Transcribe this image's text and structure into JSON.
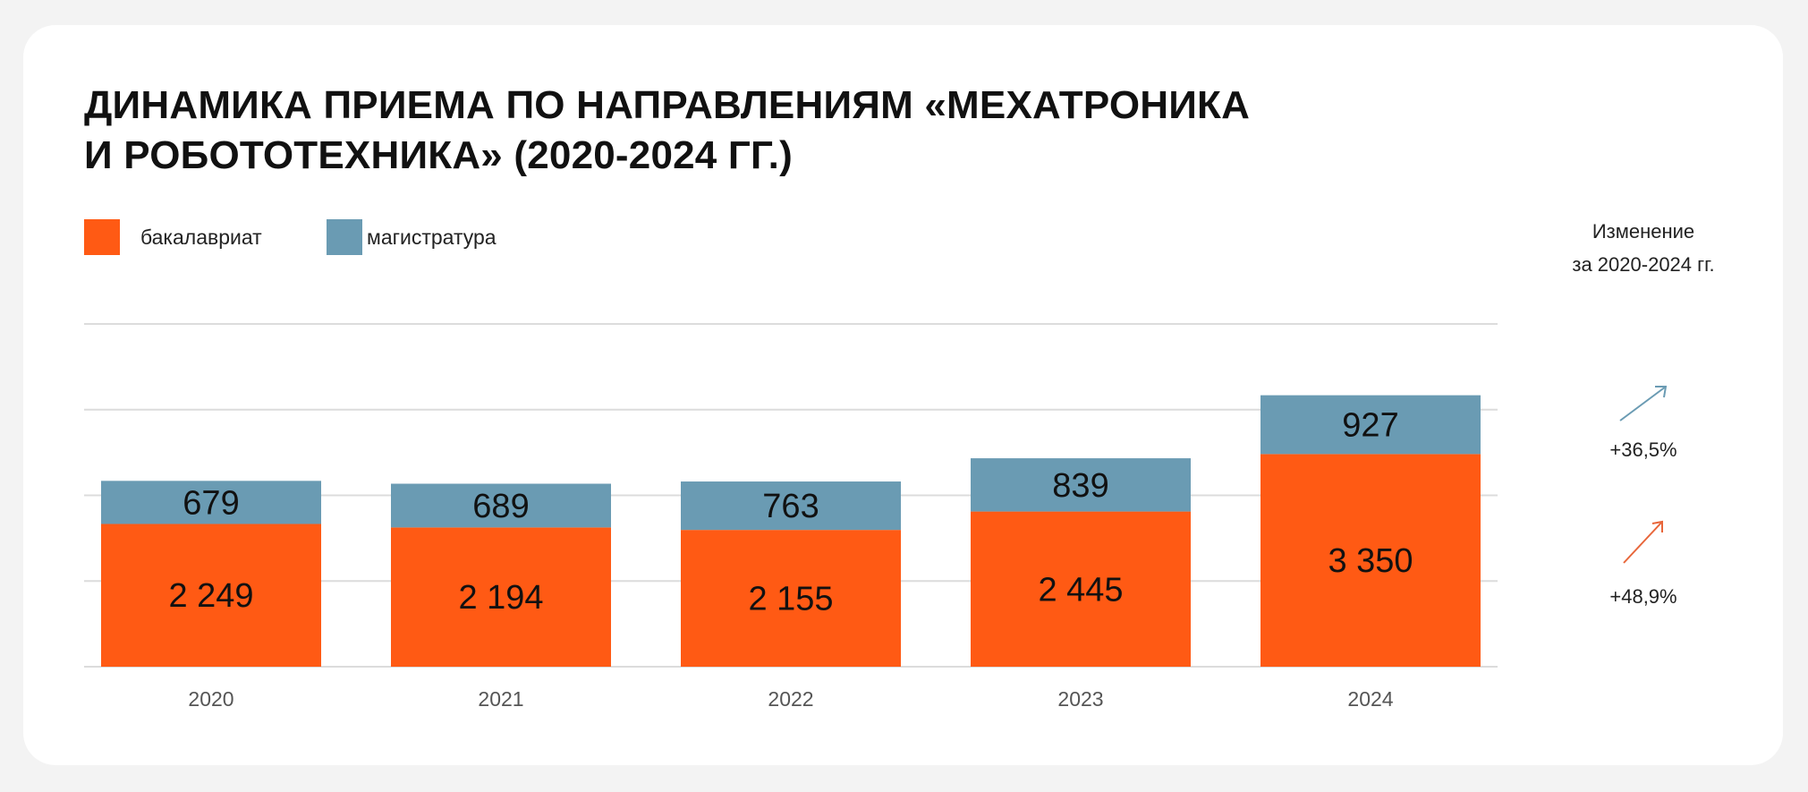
{
  "chart_data": {
    "type": "bar",
    "stacked": true,
    "title": "ДИНАМИКА ПРИЕМА ПО НАПРАВЛЕНИЯМ «МЕХАТРОНИКА И РОБОТОТЕХНИКА» (2020-2024 ГГ.)",
    "title_lines": [
      "ДИНАМИКА ПРИЕМА ПО НАПРАВЛЕНИЯМ «МЕХАТРОНИКА",
      "И РОБОТОТЕХНИКА» (2020-2024 ГГ.)"
    ],
    "categories": [
      "2020",
      "2021",
      "2022",
      "2023",
      "2024"
    ],
    "series": [
      {
        "name": "бакалавриат",
        "color": "#FF5A14",
        "values": [
          2249,
          2194,
          2155,
          2445,
          3350
        ],
        "labels": [
          "2 249",
          "2 194",
          "2 155",
          "2 445",
          "3 350"
        ]
      },
      {
        "name": "магистратура",
        "color": "#6A9BB3",
        "values": [
          679,
          689,
          763,
          839,
          927
        ],
        "labels": [
          "679",
          "689",
          "763",
          "839",
          "927"
        ]
      }
    ],
    "xlabel": "",
    "ylabel": "",
    "ylim": [
      0,
      5400
    ],
    "grid": true,
    "legend": "top-left"
  },
  "change_panel": {
    "title_line1": "Изменение",
    "title_line2": "за 2020-2024 гг.",
    "magistratura_change": "+36,5%",
    "bakalavriat_change": "+48,9%"
  }
}
